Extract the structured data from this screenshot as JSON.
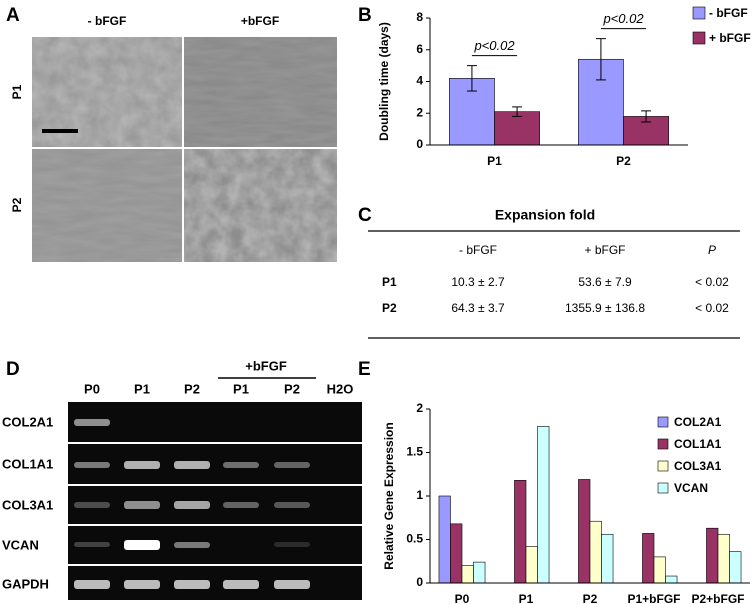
{
  "panel_a": {
    "letter": "A",
    "columns": [
      "- bFGF",
      "+bFGF"
    ],
    "rows": [
      "P1",
      "P2"
    ]
  },
  "chart_data": [
    {
      "type": "bar",
      "letter": "B",
      "ylabel": "Doubling time (days)",
      "categories": [
        "P1",
        "P2"
      ],
      "series": [
        {
          "name": "- bFGF",
          "color": "#9999ff",
          "values": [
            4.2,
            5.4
          ],
          "errors": [
            0.8,
            1.3
          ]
        },
        {
          "name": "+ bFGF",
          "color": "#993366",
          "values": [
            2.1,
            1.8
          ],
          "errors": [
            0.3,
            0.35
          ]
        }
      ],
      "annotations": [
        "p<0.02",
        "p<0.02"
      ],
      "ylim": [
        0,
        8
      ],
      "yticks": [
        0,
        2,
        4,
        6,
        8
      ],
      "legend": "right"
    },
    {
      "type": "bar",
      "letter": "E",
      "ylabel": "Relative Gene Expression",
      "categories": [
        "P0",
        "P1",
        "P2",
        "P1+bFGF",
        "P2+bFGF"
      ],
      "series": [
        {
          "name": "COL2A1",
          "color": "#9999ff",
          "values": [
            1.0,
            0,
            0,
            0,
            0
          ]
        },
        {
          "name": "COL1A1",
          "color": "#993366",
          "values": [
            0.68,
            1.18,
            1.19,
            0.57,
            0.63
          ]
        },
        {
          "name": "COL3A1",
          "color": "#ffffcc",
          "values": [
            0.2,
            0.42,
            0.71,
            0.3,
            0.56
          ]
        },
        {
          "name": "VCAN",
          "color": "#ccffff",
          "values": [
            0.24,
            1.8,
            0.56,
            0.08,
            0.36
          ]
        }
      ],
      "ylim": [
        0,
        2
      ],
      "yticks": [
        0,
        0.5,
        1,
        1.5,
        2
      ],
      "legend": "upper right"
    }
  ],
  "panel_c": {
    "letter": "C",
    "title": "Expansion fold",
    "columns": [
      "- bFGF",
      "+ bFGF",
      "P"
    ],
    "rows": [
      {
        "label": "P1",
        "cells": [
          "10.3 ± 2.7",
          "53.6 ± 7.9",
          "< 0.02"
        ]
      },
      {
        "label": "P2",
        "cells": [
          "64.3 ± 3.7",
          "1355.9 ± 136.8",
          "< 0.02"
        ]
      }
    ]
  },
  "panel_d": {
    "letter": "D",
    "group_label": "+bFGF",
    "lanes": [
      "P0",
      "P1",
      "P2",
      "P1",
      "P2",
      "H2O"
    ],
    "genes": [
      "COL2A1",
      "COL1A1",
      "COL3A1",
      "VCAN",
      "GAPDH"
    ]
  }
}
